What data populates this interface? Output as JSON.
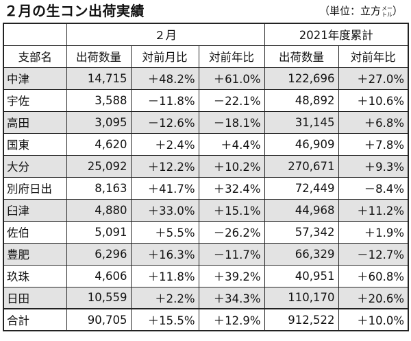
{
  "title": "２月の生コン出荷実績",
  "unit": {
    "prefix": "（単位：立方",
    "top": "メー",
    "bottom": "トル",
    "suffix": "）"
  },
  "header": {
    "group_feb": "２月",
    "group_ytd": "2021年度累計",
    "col_branch": "支部名",
    "col_shipments": "出荷数量",
    "col_mom": "対前月比",
    "col_yoy": "対前年比",
    "col_ytd_shipments": "出荷数量",
    "col_ytd_yoy": "対前年比"
  },
  "rows": [
    {
      "name": "中津",
      "qty": "14,715",
      "mom": "＋48.2%",
      "yoy": "＋61.0%",
      "ytd_qty": "122,696",
      "ytd_yoy": "＋27.0%",
      "shaded": true
    },
    {
      "name": "宇佐",
      "qty": "3,588",
      "mom": "－11.8%",
      "yoy": "－22.1%",
      "ytd_qty": "48,892",
      "ytd_yoy": "＋10.6%",
      "shaded": false
    },
    {
      "name": "高田",
      "qty": "3,095",
      "mom": "－12.6%",
      "yoy": "－18.1%",
      "ytd_qty": "31,145",
      "ytd_yoy": "＋6.8%",
      "shaded": true
    },
    {
      "name": "国東",
      "qty": "4,620",
      "mom": "＋2.4%",
      "yoy": "＋4.4%",
      "ytd_qty": "46,909",
      "ytd_yoy": "＋7.8%",
      "shaded": false
    },
    {
      "name": "大分",
      "qty": "25,092",
      "mom": "＋12.2%",
      "yoy": "＋10.2%",
      "ytd_qty": "270,671",
      "ytd_yoy": "＋9.3%",
      "shaded": true
    },
    {
      "name": "別府日出",
      "qty": "8,163",
      "mom": "＋41.7%",
      "yoy": "＋32.4%",
      "ytd_qty": "72,449",
      "ytd_yoy": "－8.4%",
      "shaded": false
    },
    {
      "name": "臼津",
      "qty": "4,880",
      "mom": "＋33.0%",
      "yoy": "＋15.1%",
      "ytd_qty": "44,968",
      "ytd_yoy": "＋11.2%",
      "shaded": true
    },
    {
      "name": "佐伯",
      "qty": "5,091",
      "mom": "＋5.5%",
      "yoy": "－26.2%",
      "ytd_qty": "57,342",
      "ytd_yoy": "＋1.9%",
      "shaded": false
    },
    {
      "name": "豊肥",
      "qty": "6,296",
      "mom": "＋16.3%",
      "yoy": "－11.7%",
      "ytd_qty": "66,329",
      "ytd_yoy": "－12.7%",
      "shaded": true
    },
    {
      "name": "玖珠",
      "qty": "4,606",
      "mom": "＋11.8%",
      "yoy": "＋39.2%",
      "ytd_qty": "40,951",
      "ytd_yoy": "＋60.8%",
      "shaded": false
    },
    {
      "name": "日田",
      "qty": "10,559",
      "mom": "＋2.2%",
      "yoy": "＋34.3%",
      "ytd_qty": "110,170",
      "ytd_yoy": "＋20.6%",
      "shaded": true
    }
  ],
  "total": {
    "name": "合計",
    "qty": "90,705",
    "mom": "＋15.5%",
    "yoy": "＋12.9%",
    "ytd_qty": "912,522",
    "ytd_yoy": "＋10.0%"
  },
  "colors": {
    "shade": "#e3e3e3",
    "border": "#222222",
    "text": "#111111"
  }
}
